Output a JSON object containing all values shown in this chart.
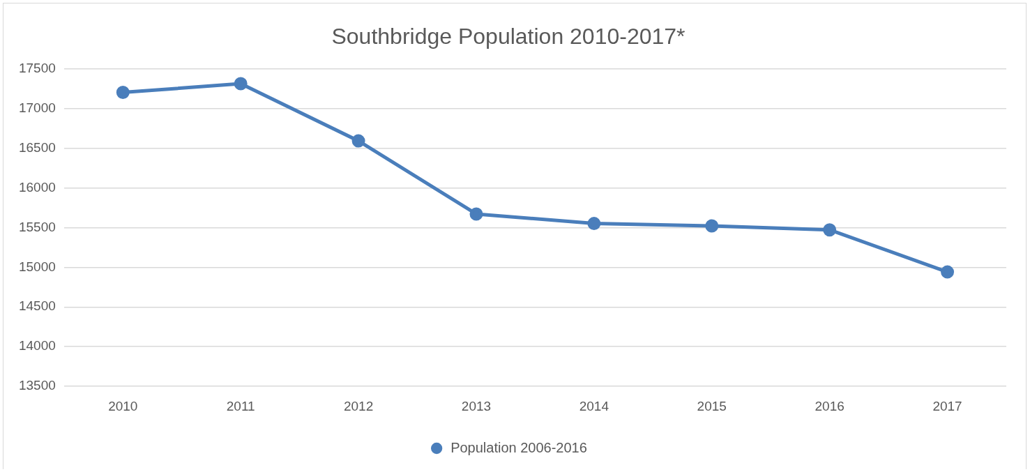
{
  "chart_data": {
    "type": "line",
    "title": "Southbridge Population 2010-2017*",
    "categories": [
      "2010",
      "2011",
      "2012",
      "2013",
      "2014",
      "2015",
      "2016",
      "2017"
    ],
    "series": [
      {
        "name": "Population 2006-2016",
        "color": "#4a7ebb",
        "values": [
          17200,
          17310,
          16590,
          15670,
          15550,
          15520,
          15470,
          14940
        ]
      }
    ],
    "ylim": [
      13500,
      17500
    ],
    "yticks": [
      13500,
      14000,
      14500,
      15000,
      15500,
      16000,
      16500,
      17000,
      17500
    ],
    "grid": "y",
    "legend": "bottom",
    "marker": "circle",
    "line_style": "solid"
  }
}
